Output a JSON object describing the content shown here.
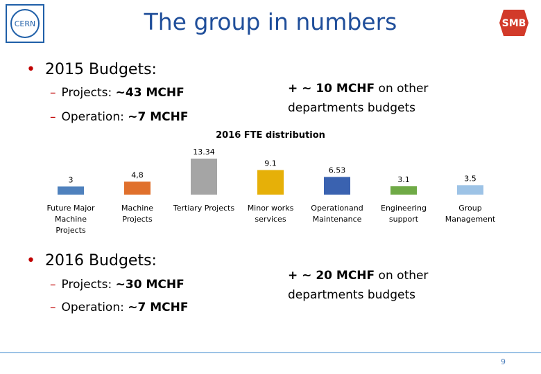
{
  "header": {
    "title": "The group in numbers",
    "logo_left": "CERN",
    "logo_right": "SMB"
  },
  "budget_2015": {
    "heading": "2015 Budgets:",
    "lines": [
      {
        "label": "Projects:",
        "amount": "~43 MCHF"
      },
      {
        "label": "Operation:",
        "amount": "~7 MCHF"
      }
    ],
    "extra_bold": "+ ~ 10 MCHF",
    "extra_rest": "on other departments budgets"
  },
  "chart_data": {
    "type": "bar",
    "title": "2016 FTE distribution",
    "categories": [
      "Future Major Machine Projects",
      "Machine Projects",
      "Tertiary Projects",
      "Minor works services",
      "Operationand Maintenance",
      "Engineering support",
      "Group Management"
    ],
    "values": [
      3,
      4.8,
      13.34,
      9.1,
      6.53,
      3.1,
      3.5
    ],
    "value_labels": [
      "3",
      "4,8",
      "13.34",
      "9.1",
      "6.53",
      "3.1",
      "3.5"
    ],
    "colors": [
      "#4f81bd",
      "#e0702c",
      "#a5a5a5",
      "#e6b008",
      "#3a62b0",
      "#6faa46",
      "#9dc3e6"
    ]
  },
  "budget_2016": {
    "heading": "2016 Budgets:",
    "lines": [
      {
        "label": "Projects:",
        "amount": "~30 MCHF"
      },
      {
        "label": "Operation:",
        "amount": "~7 MCHF"
      }
    ],
    "extra_bold": "+ ~ 20 MCHF",
    "extra_rest": "on other departments budgets"
  },
  "footer": {
    "page": "9"
  }
}
